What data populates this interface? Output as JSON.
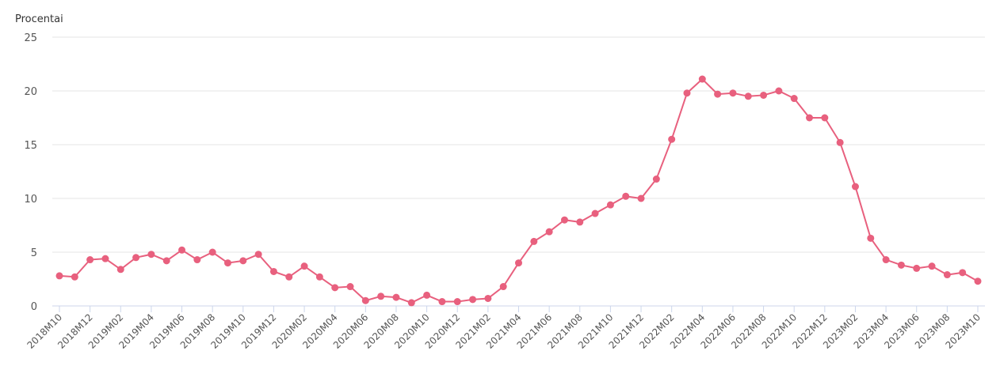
{
  "chart_data": {
    "type": "line",
    "ylabel": "Procentai",
    "ylim": [
      0,
      25
    ],
    "yticks": [
      0,
      5,
      10,
      15,
      20,
      25
    ],
    "grid": true,
    "color": "#e8607e",
    "x": [
      "2018M10",
      "2018M11",
      "2018M12",
      "2019M01",
      "2019M02",
      "2019M03",
      "2019M04",
      "2019M05",
      "2019M06",
      "2019M07",
      "2019M08",
      "2019M09",
      "2019M10",
      "2019M11",
      "2019M12",
      "2020M01",
      "2020M02",
      "2020M03",
      "2020M04",
      "2020M05",
      "2020M06",
      "2020M07",
      "2020M08",
      "2020M09",
      "2020M10",
      "2020M11",
      "2020M12",
      "2021M01",
      "2021M02",
      "2021M03",
      "2021M04",
      "2021M05",
      "2021M06",
      "2021M07",
      "2021M08",
      "2021M09",
      "2021M10",
      "2021M11",
      "2021M12",
      "2022M01",
      "2022M02",
      "2022M03",
      "2022M04",
      "2022M05",
      "2022M06",
      "2022M07",
      "2022M08",
      "2022M09",
      "2022M10",
      "2022M11",
      "2022M12",
      "2023M01",
      "2023M02",
      "2023M03",
      "2023M04",
      "2023M05",
      "2023M06",
      "2023M07",
      "2023M08",
      "2023M09",
      "2023M10"
    ],
    "xtick_labels": [
      "2018M10",
      "2018M12",
      "2019M02",
      "2019M04",
      "2019M06",
      "2019M08",
      "2019M10",
      "2019M12",
      "2020M02",
      "2020M04",
      "2020M06",
      "2020M08",
      "2020M10",
      "2020M12",
      "2021M02",
      "2021M04",
      "2021M06",
      "2021M08",
      "2021M10",
      "2021M12",
      "2022M02",
      "2022M04",
      "2022M06",
      "2022M08",
      "2022M10",
      "2022M12",
      "2023M02",
      "2023M04",
      "2023M06",
      "2023M08",
      "2023M10"
    ],
    "series": [
      {
        "values": [
          2.8,
          2.7,
          4.3,
          4.4,
          3.4,
          4.5,
          4.8,
          4.2,
          5.2,
          4.3,
          5.0,
          4.0,
          4.2,
          4.8,
          3.2,
          2.7,
          3.7,
          2.7,
          1.7,
          1.8,
          0.5,
          0.9,
          0.8,
          0.3,
          1.0,
          0.4,
          0.4,
          0.6,
          0.7,
          1.8,
          4.0,
          6.0,
          6.9,
          8.0,
          7.8,
          8.6,
          9.4,
          10.2,
          10.0,
          11.8,
          15.5,
          19.8,
          21.1,
          19.7,
          19.8,
          19.5,
          19.6,
          20.0,
          19.3,
          17.5,
          17.5,
          15.2,
          11.1,
          6.3,
          4.3,
          3.8,
          3.5,
          3.7,
          2.9,
          3.1,
          2.3
        ]
      }
    ]
  }
}
